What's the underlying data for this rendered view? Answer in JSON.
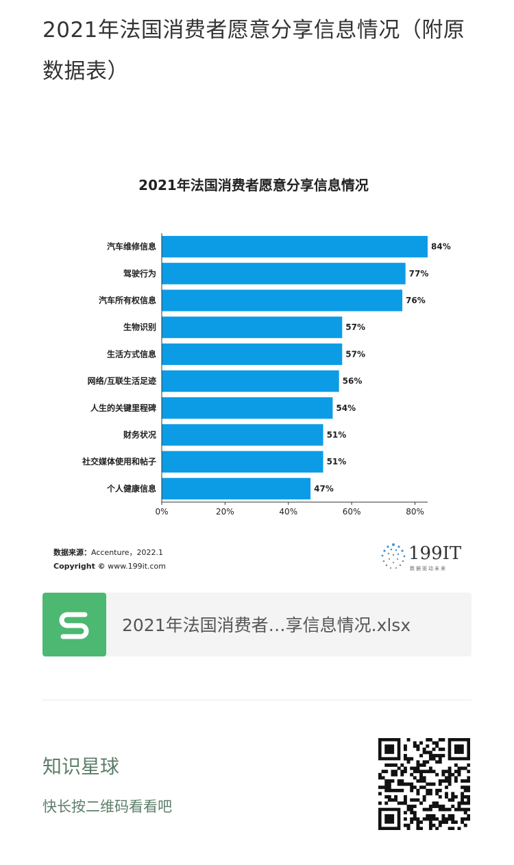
{
  "article": {
    "title": "2021年法国消费者愿意分享信息情况（附原数据表）"
  },
  "chart_data": {
    "type": "bar",
    "orientation": "horizontal",
    "title": "2021年法国消费者愿意分享信息情况",
    "categories": [
      "汽车维修信息",
      "驾驶行为",
      "汽车所有权信息",
      "生物识别",
      "生活方式信息",
      "网络/互联生活足迹",
      "人生的关键里程碑",
      "财务状况",
      "社交媒体使用和帖子",
      "个人健康信息"
    ],
    "values": [
      84,
      77,
      76,
      57,
      57,
      56,
      54,
      51,
      51,
      47
    ],
    "value_labels": [
      "84%",
      "77%",
      "76%",
      "57%",
      "57%",
      "56%",
      "54%",
      "51%",
      "51%",
      "47%"
    ],
    "x_ticks": [
      "0%",
      "20%",
      "40%",
      "60%",
      "80%"
    ],
    "xlim": [
      0,
      84
    ],
    "bar_color": "#0c9ce6",
    "grid": false,
    "legend": "none"
  },
  "source": {
    "label": "数据来源：",
    "text": "Accenture，2022.1",
    "copyright_label": "Copyright ©",
    "copyright_text": "www.199it.com"
  },
  "logo": {
    "text": "199IT",
    "tagline": "数据驱动未来"
  },
  "file_card": {
    "icon": "spreadsheet-s-icon",
    "icon_color": "#4cb872",
    "name": "2021年法国消费者…享信息情况.xlsx"
  },
  "promo": {
    "title": "知识星球",
    "subtitle": "快长按二维码看看吧"
  }
}
